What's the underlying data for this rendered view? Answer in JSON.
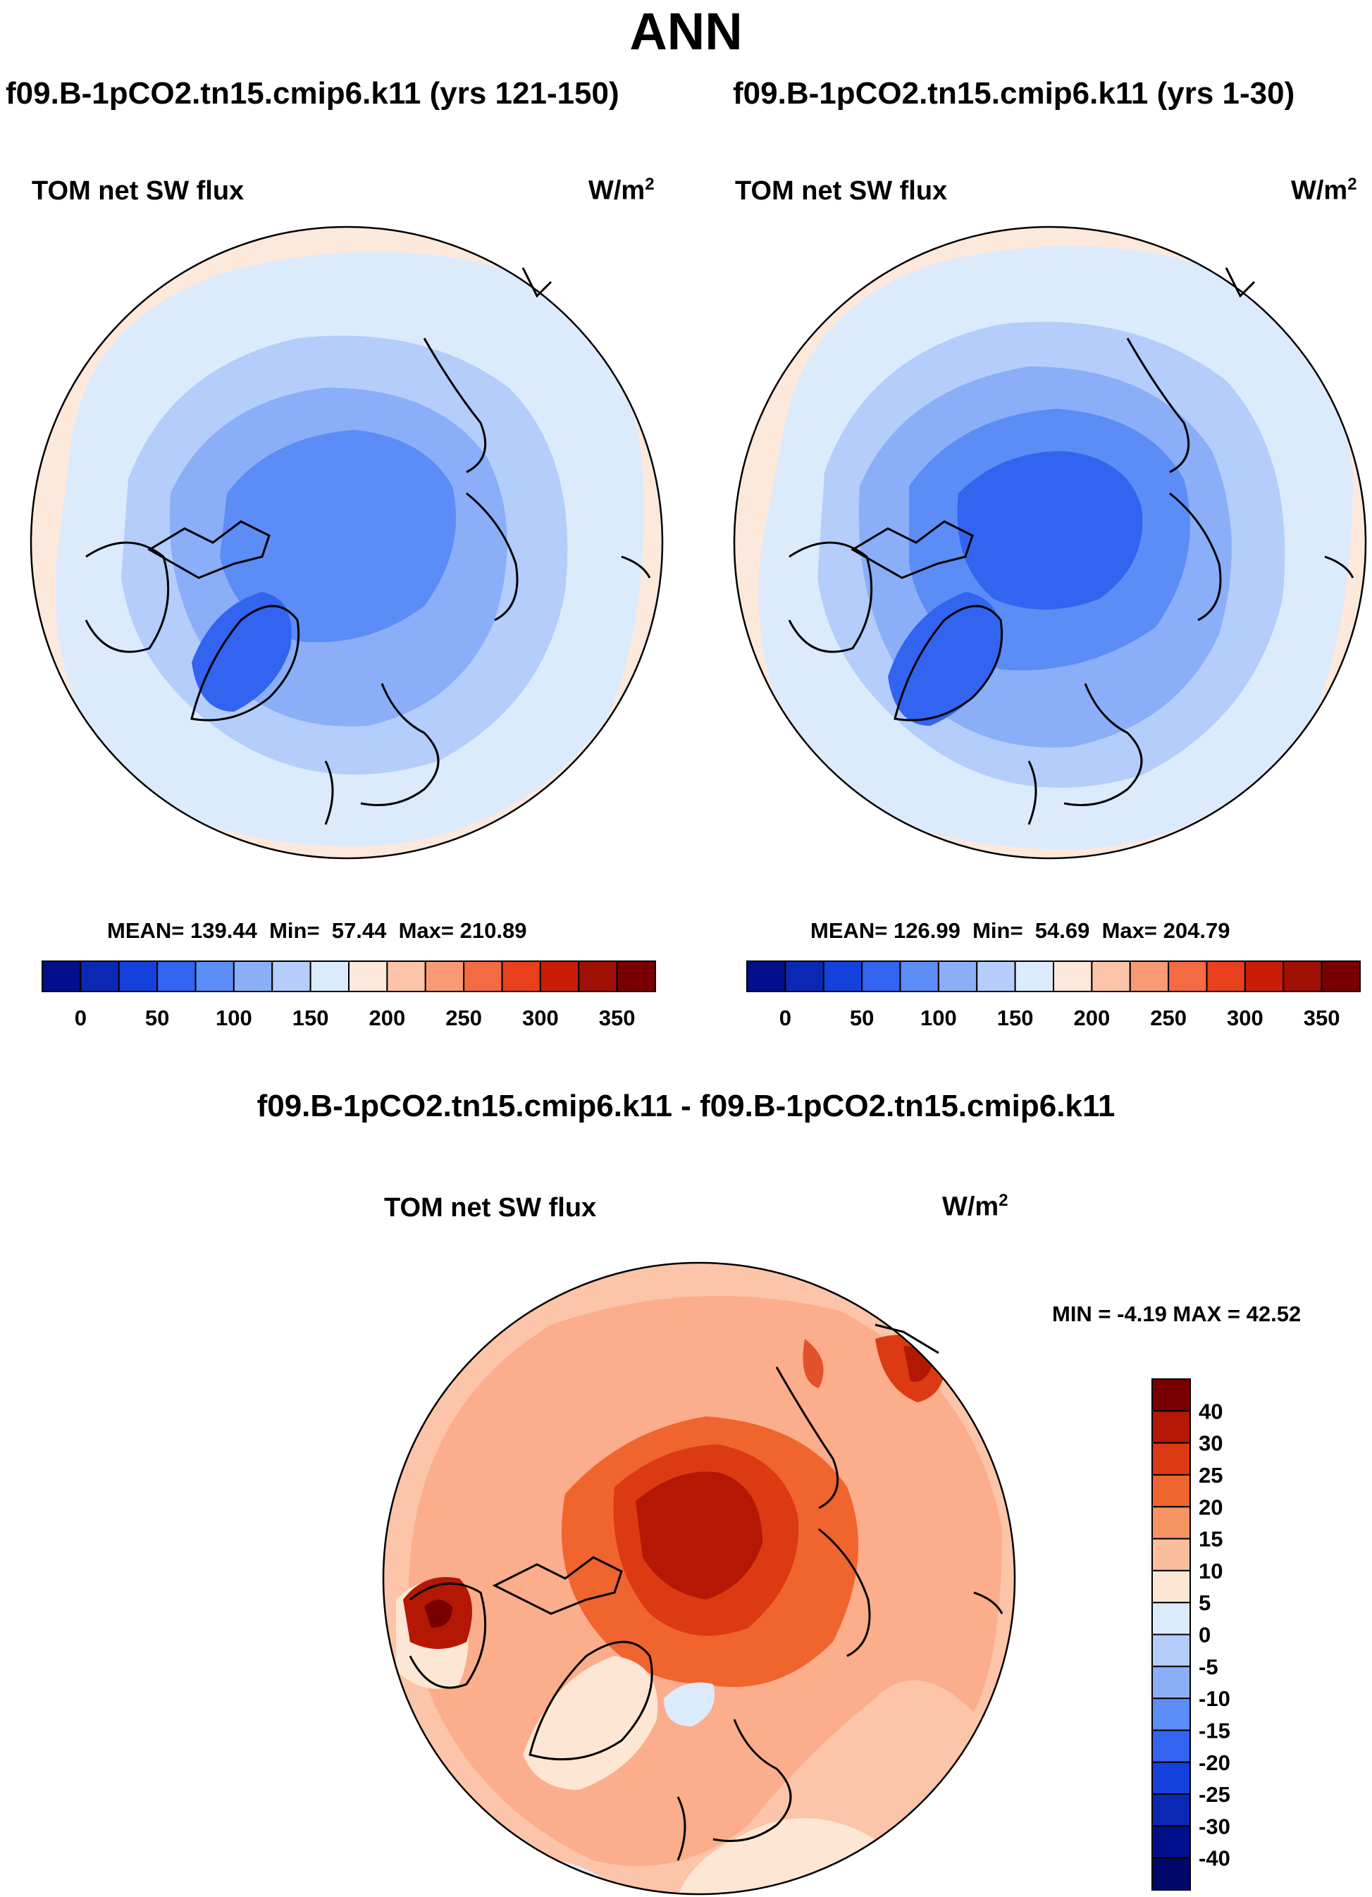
{
  "title": "ANN",
  "panels": [
    {
      "case": "f09.B-1pCO2.tn15.cmip6.k11 (yrs 121-150)",
      "variable": "TOM net SW flux",
      "units_base": "W/m",
      "units_sup": "2",
      "stats": {
        "mean_label": "MEAN=",
        "mean": "139.44",
        "min_label": "Min=",
        "min": "57.44",
        "max_label": "Max=",
        "max": "210.89"
      }
    },
    {
      "case": "f09.B-1pCO2.tn15.cmip6.k11 (yrs 1-30)",
      "variable": "TOM net SW flux",
      "units_base": "W/m",
      "units_sup": "2",
      "stats": {
        "mean_label": "MEAN=",
        "mean": "126.99",
        "min_label": "Min=",
        "min": "54.69",
        "max_label": "Max=",
        "max": "204.79"
      }
    }
  ],
  "difference": {
    "title": "f09.B-1pCO2.tn15.cmip6.k11 - f09.B-1pCO2.tn15.cmip6.k11",
    "variable": "TOM net SW flux",
    "units_base": "W/m",
    "units_sup": "2",
    "minmax_text": "MIN =  -4.19 MAX =  42.52"
  },
  "chart_data": [
    {
      "type": "heatmap",
      "projection": "north polar stereographic",
      "title": "TOM net SW flux",
      "subtitle": "f09.B-1pCO2.tn15.cmip6.k11 (yrs 121-150)",
      "units": "W/m2",
      "mean": 139.44,
      "min": 57.44,
      "max": 210.89,
      "colorbar": {
        "orientation": "horizontal",
        "levels": [
          -25,
          0,
          25,
          50,
          75,
          100,
          125,
          150,
          175,
          200,
          225,
          250,
          275,
          300,
          325,
          350,
          375
        ],
        "tick_labels": [
          "0",
          "50",
          "100",
          "150",
          "200",
          "250",
          "300",
          "350"
        ],
        "colors": [
          "#000f8c",
          "#0a28b4",
          "#1440dc",
          "#3264f0",
          "#5c8cf5",
          "#8aaef8",
          "#b4cdfa",
          "#dcebfc",
          "#fde8dc",
          "#fcc4a8",
          "#f99a74",
          "#f46a42",
          "#e8401c",
          "#c81e08",
          "#a01004",
          "#780000"
        ]
      }
    },
    {
      "type": "heatmap",
      "projection": "north polar stereographic",
      "title": "TOM net SW flux",
      "subtitle": "f09.B-1pCO2.tn15.cmip6.k11 (yrs 1-30)",
      "units": "W/m2",
      "mean": 126.99,
      "min": 54.69,
      "max": 204.79,
      "colorbar": {
        "orientation": "horizontal",
        "levels": [
          -25,
          0,
          25,
          50,
          75,
          100,
          125,
          150,
          175,
          200,
          225,
          250,
          275,
          300,
          325,
          350,
          375
        ],
        "tick_labels": [
          "0",
          "50",
          "100",
          "150",
          "200",
          "250",
          "300",
          "350"
        ],
        "colors": [
          "#000f8c",
          "#0a28b4",
          "#1440dc",
          "#3264f0",
          "#5c8cf5",
          "#8aaef8",
          "#b4cdfa",
          "#dcebfc",
          "#fde8dc",
          "#fcc4a8",
          "#f99a74",
          "#f46a42",
          "#e8401c",
          "#c81e08",
          "#a01004",
          "#780000"
        ]
      }
    },
    {
      "type": "heatmap",
      "projection": "north polar stereographic",
      "title": "TOM net SW flux",
      "subtitle": "f09.B-1pCO2.tn15.cmip6.k11 - f09.B-1pCO2.tn15.cmip6.k11",
      "units": "W/m2",
      "min": -4.19,
      "max": 42.52,
      "colorbar": {
        "orientation": "vertical",
        "tick_labels": [
          "40",
          "30",
          "25",
          "20",
          "15",
          "10",
          "5",
          "0",
          "-5",
          "-10",
          "-15",
          "-20",
          "-25",
          "-30",
          "-40"
        ],
        "colors": [
          "#780000",
          "#b41804",
          "#dc3a12",
          "#f0642e",
          "#f69464",
          "#fabe9c",
          "#fde6d4",
          "#dcebfc",
          "#b4cdfa",
          "#8aaef8",
          "#5c8cf5",
          "#3264f0",
          "#1440dc",
          "#0a28b4",
          "#000f8c",
          "#00086a"
        ]
      }
    }
  ]
}
